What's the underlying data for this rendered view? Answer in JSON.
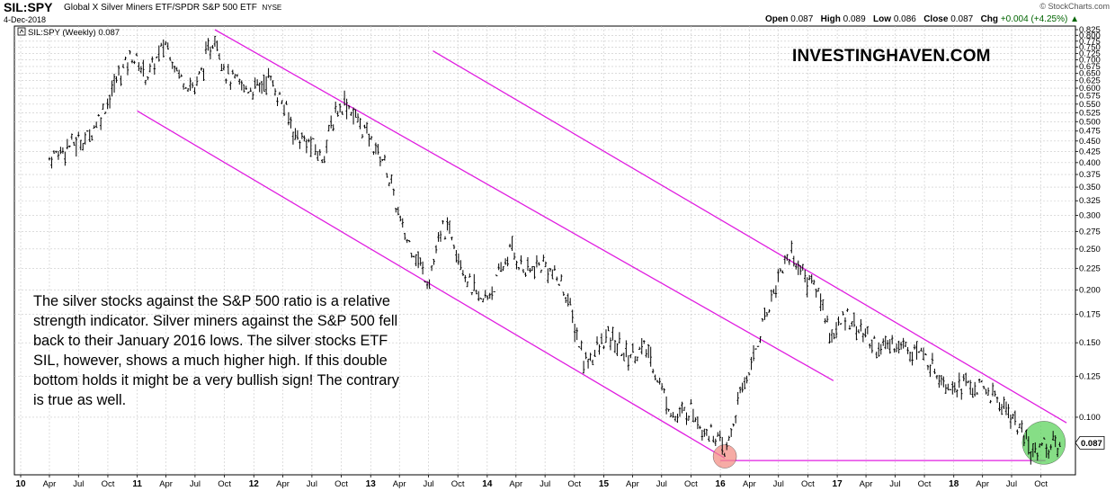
{
  "header": {
    "symbol": "SIL:SPY",
    "name": "Global X Silver Miners ETF/SPDR S&P 500 ETF",
    "exchange": "NYSE",
    "date": "4-Dec-2018",
    "credit": "© StockCharts.com",
    "open_label": "Open",
    "open": "0.087",
    "high_label": "High",
    "high": "0.089",
    "low_label": "Low",
    "low": "0.086",
    "close_label": "Close",
    "close": "0.087",
    "chg_label": "Chg",
    "chg": "+0.004 (+4.25%)",
    "chg_marker": "▲"
  },
  "legend": {
    "text": "SIL:SPY (Weekly) 0.087"
  },
  "watermark": "INVESTINGHAVEN.COM",
  "annotation": "The silver stocks against the S&P 500 ratio is a relative strength indicator. Silver miners against the S&P 500 fell back to their January 2016 lows. The silver stocks ETF SIL, however, shows a much higher high. If this double bottom holds it might be a very bullish sign! The contrary is true as well.",
  "colors": {
    "price": "#000000",
    "channel": "#e01ee0",
    "grid": "#c8c8c8",
    "circle_low": "#f28b82",
    "circle_current": "#57d157",
    "price_tag_bg": "#ffffff"
  },
  "chart_data": {
    "type": "line",
    "style": "weekly OHLC bars",
    "scale": "log",
    "ylim": [
      0.076,
      0.825
    ],
    "xlim": [
      "2010-01-01",
      "2018-12-31"
    ],
    "y_ticks": [
      0.825,
      0.8,
      0.775,
      0.75,
      0.725,
      0.7,
      0.675,
      0.65,
      0.625,
      0.6,
      0.575,
      0.55,
      0.525,
      0.5,
      0.475,
      0.45,
      0.425,
      0.4,
      0.375,
      0.35,
      0.325,
      0.3,
      0.275,
      0.25,
      0.225,
      0.2,
      0.175,
      0.15,
      0.125,
      0.1
    ],
    "x_ticks": [
      {
        "label": "10",
        "date": "2010-01-01"
      },
      {
        "label": "Apr",
        "date": "2010-04-01"
      },
      {
        "label": "Jul",
        "date": "2010-07-01"
      },
      {
        "label": "Oct",
        "date": "2010-10-01"
      },
      {
        "label": "11",
        "date": "2011-01-01"
      },
      {
        "label": "Apr",
        "date": "2011-04-01"
      },
      {
        "label": "Jul",
        "date": "2011-07-01"
      },
      {
        "label": "Oct",
        "date": "2011-10-01"
      },
      {
        "label": "12",
        "date": "2012-01-01"
      },
      {
        "label": "Apr",
        "date": "2012-04-01"
      },
      {
        "label": "Jul",
        "date": "2012-07-01"
      },
      {
        "label": "Oct",
        "date": "2012-10-01"
      },
      {
        "label": "13",
        "date": "2013-01-01"
      },
      {
        "label": "Apr",
        "date": "2013-04-01"
      },
      {
        "label": "Jul",
        "date": "2013-07-01"
      },
      {
        "label": "Oct",
        "date": "2013-10-01"
      },
      {
        "label": "14",
        "date": "2014-01-01"
      },
      {
        "label": "Apr",
        "date": "2014-04-01"
      },
      {
        "label": "Jul",
        "date": "2014-07-01"
      },
      {
        "label": "Oct",
        "date": "2014-10-01"
      },
      {
        "label": "15",
        "date": "2015-01-01"
      },
      {
        "label": "Apr",
        "date": "2015-04-01"
      },
      {
        "label": "Jul",
        "date": "2015-07-01"
      },
      {
        "label": "Oct",
        "date": "2015-10-01"
      },
      {
        "label": "16",
        "date": "2016-01-01"
      },
      {
        "label": "Apr",
        "date": "2016-04-01"
      },
      {
        "label": "Jul",
        "date": "2016-07-01"
      },
      {
        "label": "Oct",
        "date": "2016-10-01"
      },
      {
        "label": "17",
        "date": "2017-01-01"
      },
      {
        "label": "Apr",
        "date": "2017-04-01"
      },
      {
        "label": "Jul",
        "date": "2017-07-01"
      },
      {
        "label": "Oct",
        "date": "2017-10-01"
      },
      {
        "label": "18",
        "date": "2018-01-01"
      },
      {
        "label": "Apr",
        "date": "2018-04-01"
      },
      {
        "label": "Jul",
        "date": "2018-07-01"
      },
      {
        "label": "Oct",
        "date": "2018-10-01"
      }
    ],
    "series": [
      {
        "name": "SIL:SPY (Weekly)",
        "points": [
          [
            "2010-04-01",
            0.41
          ],
          [
            "2010-06-01",
            0.44
          ],
          [
            "2010-08-01",
            0.46
          ],
          [
            "2010-10-01",
            0.56
          ],
          [
            "2010-11-01",
            0.64
          ],
          [
            "2010-12-15",
            0.72
          ],
          [
            "2011-02-01",
            0.64
          ],
          [
            "2011-04-01",
            0.77
          ],
          [
            "2011-05-15",
            0.64
          ],
          [
            "2011-07-01",
            0.6
          ],
          [
            "2011-09-01",
            0.8
          ],
          [
            "2011-10-10",
            0.64
          ],
          [
            "2011-12-01",
            0.6
          ],
          [
            "2012-01-15",
            0.6
          ],
          [
            "2012-02-15",
            0.64
          ],
          [
            "2012-04-01",
            0.55
          ],
          [
            "2012-05-15",
            0.46
          ],
          [
            "2012-07-01",
            0.44
          ],
          [
            "2012-08-01",
            0.41
          ],
          [
            "2012-09-15",
            0.53
          ],
          [
            "2012-10-15",
            0.56
          ],
          [
            "2012-12-01",
            0.49
          ],
          [
            "2013-01-01",
            0.45
          ],
          [
            "2013-02-15",
            0.4
          ],
          [
            "2013-03-15",
            0.33
          ],
          [
            "2013-04-15",
            0.27
          ],
          [
            "2013-05-15",
            0.25
          ],
          [
            "2013-06-15",
            0.22
          ],
          [
            "2013-07-01",
            0.21
          ],
          [
            "2013-08-15",
            0.28
          ],
          [
            "2013-09-15",
            0.27
          ],
          [
            "2013-11-01",
            0.21
          ],
          [
            "2013-12-15",
            0.185
          ],
          [
            "2014-02-01",
            0.21
          ],
          [
            "2014-03-15",
            0.25
          ],
          [
            "2014-05-01",
            0.22
          ],
          [
            "2014-07-01",
            0.23
          ],
          [
            "2014-09-01",
            0.2
          ],
          [
            "2014-11-01",
            0.135
          ],
          [
            "2014-12-15",
            0.145
          ],
          [
            "2015-01-15",
            0.155
          ],
          [
            "2015-03-15",
            0.14
          ],
          [
            "2015-05-15",
            0.145
          ],
          [
            "2015-07-15",
            0.11
          ],
          [
            "2015-08-15",
            0.099
          ],
          [
            "2015-10-01",
            0.105
          ],
          [
            "2015-11-15",
            0.093
          ],
          [
            "2015-12-15",
            0.091
          ],
          [
            "2016-01-15",
            0.081
          ],
          [
            "2016-02-15",
            0.1
          ],
          [
            "2016-03-15",
            0.12
          ],
          [
            "2016-04-15",
            0.14
          ],
          [
            "2016-06-01",
            0.185
          ],
          [
            "2016-07-15",
            0.23
          ],
          [
            "2016-08-10",
            0.245
          ],
          [
            "2016-09-15",
            0.22
          ],
          [
            "2016-11-01",
            0.2
          ],
          [
            "2016-12-15",
            0.155
          ],
          [
            "2017-02-01",
            0.175
          ],
          [
            "2017-03-15",
            0.16
          ],
          [
            "2017-05-15",
            0.145
          ],
          [
            "2017-07-01",
            0.15
          ],
          [
            "2017-09-01",
            0.145
          ],
          [
            "2017-10-15",
            0.135
          ],
          [
            "2017-12-15",
            0.12
          ],
          [
            "2018-02-01",
            0.12
          ],
          [
            "2018-04-15",
            0.115
          ],
          [
            "2018-06-15",
            0.105
          ],
          [
            "2018-08-01",
            0.092
          ],
          [
            "2018-09-01",
            0.082
          ],
          [
            "2018-10-01",
            0.087
          ],
          [
            "2018-11-01",
            0.085
          ],
          [
            "2018-12-04",
            0.087
          ]
        ]
      }
    ],
    "trend_lines": [
      {
        "name": "upper-channel",
        "from": [
          "2011-09-01",
          0.825
        ],
        "to": [
          "2016-12-20",
          0.122
        ]
      },
      {
        "name": "lower-channel",
        "from": [
          "2011-01-01",
          0.53
        ],
        "to": [
          "2016-01-15",
          0.08
        ]
      },
      {
        "name": "outer-resistance",
        "from": [
          "2013-07-15",
          0.735
        ],
        "to": [
          "2018-12-20",
          0.097
        ]
      },
      {
        "name": "support",
        "from": [
          "2016-01-01",
          0.079
        ],
        "to": [
          "2018-10-15",
          0.079
        ]
      }
    ],
    "highlights": [
      {
        "name": "january-2016-low",
        "date": "2016-01-15",
        "value": 0.08
      },
      {
        "name": "current-low",
        "date": "2018-10-10",
        "value": 0.087
      }
    ],
    "grid": true
  }
}
